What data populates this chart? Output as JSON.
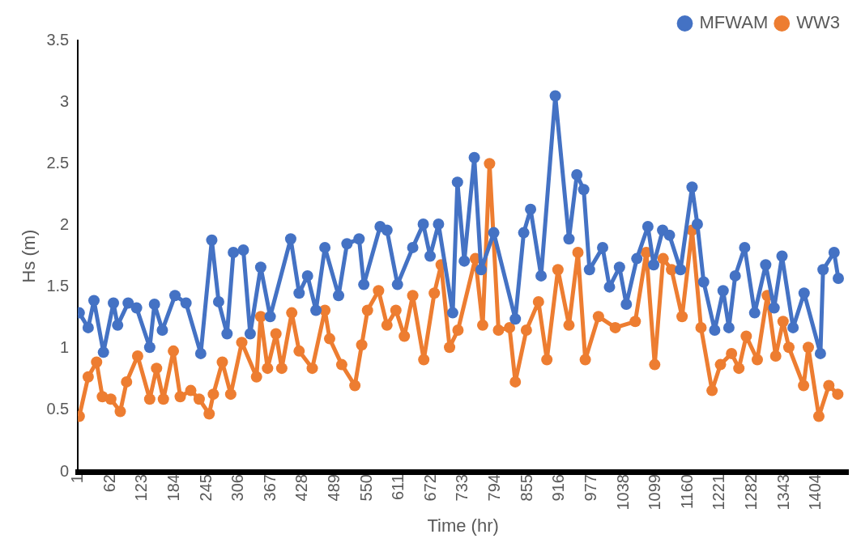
{
  "chart_data": {
    "type": "line",
    "xlabel": "Time (hr)",
    "ylabel": "Hs (m)",
    "xlim": [
      0.5,
      1464.5
    ],
    "xticks": [
      1,
      62,
      123,
      184,
      245,
      306,
      367,
      428,
      489,
      550,
      611,
      672,
      733,
      794,
      855,
      916,
      977,
      1038,
      1099,
      1160,
      1221,
      1282,
      1343,
      1404
    ],
    "ylim": [
      0,
      3.5
    ],
    "yticks": [
      0,
      0.5,
      1,
      1.5,
      2,
      2.5,
      3,
      3.5
    ],
    "grid": false,
    "legend": "top right",
    "marker": "circle",
    "line_style": "solid",
    "series": [
      {
        "name": "MFWAM",
        "color": "#4472c4",
        "x": [
          3,
          20,
          31,
          49,
          68,
          76,
          96,
          112,
          137,
          146,
          161,
          185,
          206,
          234,
          255,
          268,
          284,
          296,
          315,
          328,
          348,
          366,
          405,
          421,
          437,
          453,
          470,
          496,
          512,
          535,
          544,
          575,
          588,
          608,
          637,
          657,
          670,
          686,
          713,
          722,
          735,
          754,
          767,
          791,
          832,
          848,
          861,
          881,
          908,
          934,
          949,
          962,
          973,
          998,
          1011,
          1030,
          1043,
          1063,
          1084,
          1095,
          1112,
          1125,
          1146,
          1168,
          1178,
          1190,
          1211,
          1227,
          1238,
          1250,
          1268,
          1287,
          1308,
          1324,
          1339,
          1360,
          1381,
          1412,
          1417,
          1438,
          1446
        ],
        "values": [
          1.29,
          1.17,
          1.39,
          0.97,
          1.37,
          1.19,
          1.37,
          1.33,
          1.01,
          1.36,
          1.15,
          1.43,
          1.37,
          0.96,
          1.88,
          1.38,
          1.12,
          1.78,
          1.8,
          1.12,
          1.66,
          1.26,
          1.89,
          1.45,
          1.59,
          1.31,
          1.82,
          1.43,
          1.85,
          1.89,
          1.52,
          1.99,
          1.96,
          1.52,
          1.82,
          2.01,
          1.75,
          2.01,
          1.29,
          2.35,
          1.71,
          2.55,
          1.64,
          1.94,
          1.24,
          1.94,
          2.13,
          1.59,
          3.05,
          1.89,
          2.41,
          2.29,
          1.64,
          1.82,
          1.5,
          1.66,
          1.36,
          1.73,
          1.99,
          1.68,
          1.96,
          1.92,
          1.64,
          2.31,
          2.01,
          1.54,
          1.15,
          1.47,
          1.17,
          1.59,
          1.82,
          1.29,
          1.68,
          1.33,
          1.75,
          1.17,
          1.45,
          0.96,
          1.64,
          1.78,
          1.57
        ]
      },
      {
        "name": "WW3",
        "color": "#ed7d31",
        "x": [
          3,
          20,
          36,
          47,
          63,
          81,
          93,
          114,
          137,
          150,
          163,
          182,
          195,
          215,
          231,
          250,
          258,
          275,
          291,
          312,
          340,
          348,
          361,
          377,
          388,
          407,
          421,
          446,
          470,
          479,
          502,
          527,
          540,
          551,
          572,
          588,
          605,
          621,
          637,
          658,
          678,
          691,
          707,
          723,
          756,
          770,
          783,
          800,
          821,
          832,
          853,
          876,
          892,
          913,
          934,
          951,
          965,
          990,
          1022,
          1060,
          1081,
          1097,
          1113,
          1129,
          1149,
          1168,
          1185,
          1206,
          1222,
          1243,
          1257,
          1271,
          1292,
          1311,
          1327,
          1341,
          1352,
          1380,
          1389,
          1409,
          1428,
          1445
        ],
        "values": [
          0.45,
          0.77,
          0.89,
          0.61,
          0.59,
          0.49,
          0.73,
          0.94,
          0.59,
          0.84,
          0.59,
          0.98,
          0.61,
          0.66,
          0.59,
          0.47,
          0.63,
          0.89,
          0.63,
          1.05,
          0.77,
          1.26,
          0.84,
          1.12,
          0.84,
          1.29,
          0.98,
          0.84,
          1.31,
          1.08,
          0.87,
          0.7,
          1.03,
          1.31,
          1.47,
          1.19,
          1.31,
          1.1,
          1.43,
          0.91,
          1.45,
          1.68,
          1.01,
          1.15,
          1.73,
          1.19,
          2.5,
          1.15,
          1.17,
          0.73,
          1.15,
          1.38,
          0.91,
          1.64,
          1.19,
          1.78,
          0.91,
          1.26,
          1.17,
          1.22,
          1.78,
          0.87,
          1.73,
          1.64,
          1.26,
          1.96,
          1.17,
          0.66,
          0.87,
          0.96,
          0.84,
          1.1,
          0.91,
          1.43,
          0.94,
          1.22,
          1.01,
          0.7,
          1.01,
          0.45,
          0.7,
          0.63
        ]
      }
    ]
  }
}
